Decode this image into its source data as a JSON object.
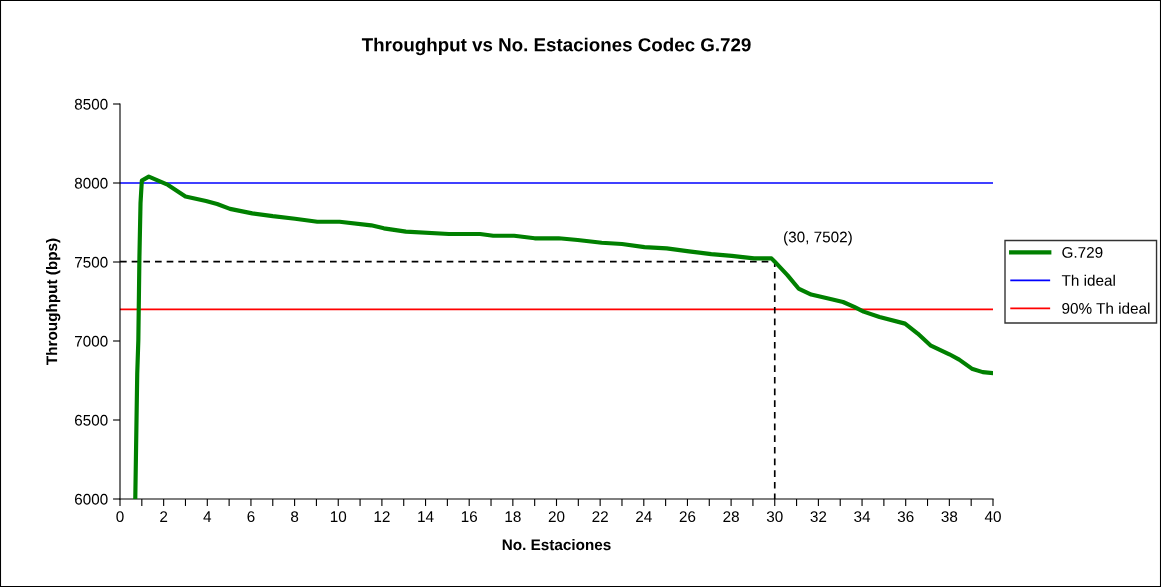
{
  "chart_data": {
    "type": "line",
    "title": "Throughput vs No. Estaciones Codec G.729",
    "xlabel": "No. Estaciones",
    "ylabel": "Throughput (bps)",
    "series": [
      {
        "name": "G.729",
        "color": "#008000",
        "x": [
          0.7,
          0.79,
          0.84,
          0.89,
          0.94,
          1.0,
          1.32,
          2.2,
          3.0,
          3.94,
          4.45,
          5.04,
          6.06,
          7.0,
          8.02,
          9.04,
          10.06,
          11.51,
          12.09,
          13.1,
          15.07,
          16.5,
          17.1,
          18.06,
          19.0,
          20.1,
          20.97,
          22.07,
          23.0,
          24.03,
          25.05,
          26.07,
          27.09,
          28.03,
          29.05,
          29.85,
          30,
          30.58,
          31.09,
          31.67,
          32.6,
          33.13,
          33.64,
          34.07,
          34.8,
          35.97,
          36.55,
          37.13,
          38.0,
          38.45,
          39.03,
          39.53,
          40
        ],
        "values": [
          6000,
          6795,
          7005,
          7533,
          7872,
          8015,
          8040,
          7988,
          7914,
          7886,
          7867,
          7836,
          7808,
          7790,
          7774,
          7755,
          7755,
          7732,
          7713,
          7692,
          7677,
          7677,
          7666,
          7666,
          7650,
          7650,
          7639,
          7622,
          7614,
          7594,
          7586,
          7567,
          7550,
          7539,
          7523,
          7523,
          7502,
          7417,
          7332,
          7294,
          7264,
          7247,
          7216,
          7186,
          7152,
          7110,
          7047,
          6973,
          6916,
          6882,
          6825,
          6803,
          6797
        ]
      },
      {
        "name": "Th ideal",
        "color": "#0000ff",
        "x": [
          0,
          40
        ],
        "values": [
          8000,
          8000
        ]
      },
      {
        "name": "90% Th ideal",
        "color": "#ff0000",
        "x": [
          0,
          40
        ],
        "values": [
          7200,
          7200
        ]
      },
      {
        "color": "#000000",
        "line_style": "dashed",
        "x": [
          0,
          30,
          30
        ],
        "values": [
          7502,
          7502,
          6000
        ]
      }
    ],
    "annotations": [
      {
        "text": "(30, 7502)",
        "x": 30,
        "y": 7502
      }
    ],
    "xlim": [
      0,
      40
    ],
    "ylim": [
      6000,
      8500
    ],
    "xticks": [
      0,
      {
        "value": 1,
        "label": null
      },
      2,
      {
        "value": 3,
        "label": null
      },
      4,
      {
        "value": 5,
        "label": null
      },
      6,
      {
        "value": 7,
        "label": null
      },
      8,
      {
        "value": 9,
        "label": null
      },
      10,
      {
        "value": 11,
        "label": null
      },
      12,
      {
        "value": 13,
        "label": null
      },
      14,
      {
        "value": 15,
        "label": null
      },
      16,
      {
        "value": 17,
        "label": null
      },
      18,
      {
        "value": 19,
        "label": null
      },
      20,
      {
        "value": 21,
        "label": null
      },
      22,
      {
        "value": 23,
        "label": null
      },
      24,
      {
        "value": 25,
        "label": null
      },
      26,
      {
        "value": 27,
        "label": null
      },
      28,
      {
        "value": 29,
        "label": null
      },
      30,
      {
        "value": 31,
        "label": null
      },
      32,
      {
        "value": 33,
        "label": null
      },
      34,
      {
        "value": 35,
        "label": null
      },
      36,
      {
        "value": 37,
        "label": null
      },
      38,
      {
        "value": 39,
        "label": null
      },
      40
    ],
    "yticks": [
      6000,
      6500,
      7000,
      7500,
      8000,
      8500
    ],
    "grid": false,
    "legend": "right",
    "marker": "none",
    "line_style": "solid"
  }
}
